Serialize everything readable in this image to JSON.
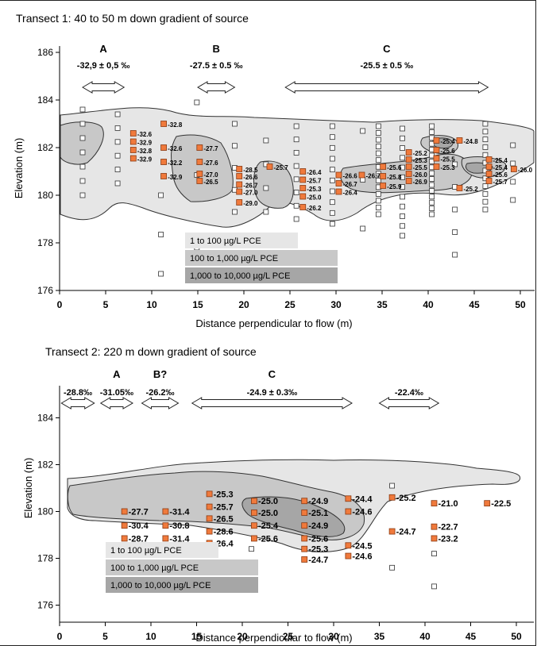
{
  "chart_data": [
    {
      "type": "scatter",
      "title": "Transect 1: 40 to 50 m down gradient of source",
      "xlabel": "Distance perpendicular to flow (m)",
      "ylabel": "Elevation (m)",
      "xlim": [
        0,
        52
      ],
      "ylim": [
        176,
        186.5
      ],
      "xticks": [
        0,
        5,
        10,
        15,
        20,
        25,
        30,
        35,
        40,
        45,
        50
      ],
      "yticks": [
        176,
        178,
        180,
        182,
        184,
        186
      ],
      "legend": [
        "1 to 100 µg/L PCE",
        "100 to 1,000 µg/L PCE",
        "1,000 to 10,000 µg/L PCE"
      ],
      "zone_colors": [
        "#e6e6e6",
        "#c8c8c8",
        "#a6a6a6"
      ],
      "zones": [
        {
          "label": "A",
          "text": "-32,9 ± 0,5 ‰",
          "from": 2.5,
          "to": 7.0
        },
        {
          "label": "B",
          "text": "-27.5 ± 0.5 ‰",
          "from": 15.0,
          "to": 19.0
        },
        {
          "label": "C",
          "text": "-25.5 ± 0.5 ‰",
          "from": 24.5,
          "to": 46.5
        }
      ],
      "samples": [
        {
          "x": 8.0,
          "y": 182.6,
          "label": "-32.6"
        },
        {
          "x": 8.0,
          "y": 182.25,
          "label": "-32.9"
        },
        {
          "x": 8.0,
          "y": 181.9,
          "label": "-32.8"
        },
        {
          "x": 8.0,
          "y": 181.55,
          "label": "-32.9"
        },
        {
          "x": 11.3,
          "y": 183.0,
          "label": "-32.8"
        },
        {
          "x": 11.3,
          "y": 182.0,
          "label": "-32.6"
        },
        {
          "x": 11.3,
          "y": 181.4,
          "label": "-32.2"
        },
        {
          "x": 11.3,
          "y": 180.8,
          "label": "-32.9"
        },
        {
          "x": 15.2,
          "y": 182.0,
          "label": "-27.7"
        },
        {
          "x": 15.2,
          "y": 181.4,
          "label": "-27.6"
        },
        {
          "x": 15.2,
          "y": 180.9,
          "label": "-27.0"
        },
        {
          "x": 15.2,
          "y": 180.6,
          "label": "-26.5"
        },
        {
          "x": 19.5,
          "y": 181.1,
          "label": "-28.5"
        },
        {
          "x": 19.5,
          "y": 180.8,
          "label": "-26.6"
        },
        {
          "x": 19.5,
          "y": 180.45,
          "label": "-26.7"
        },
        {
          "x": 19.5,
          "y": 180.15,
          "label": "-27.0"
        },
        {
          "x": 19.5,
          "y": 179.7,
          "label": "-29.0"
        },
        {
          "x": 22.8,
          "y": 181.2,
          "label": "-25.7"
        },
        {
          "x": 26.4,
          "y": 181.0,
          "label": "-26.4"
        },
        {
          "x": 26.4,
          "y": 180.65,
          "label": "-25.7"
        },
        {
          "x": 26.4,
          "y": 180.3,
          "label": "-25.3"
        },
        {
          "x": 26.4,
          "y": 179.95,
          "label": "-25.0"
        },
        {
          "x": 26.4,
          "y": 179.5,
          "label": "-26.2"
        },
        {
          "x": 30.3,
          "y": 180.85,
          "label": "-26.6"
        },
        {
          "x": 30.3,
          "y": 180.5,
          "label": "-26.7"
        },
        {
          "x": 30.3,
          "y": 180.15,
          "label": "-26.4"
        },
        {
          "x": 32.8,
          "y": 180.85,
          "label": "-26.7"
        },
        {
          "x": 35.1,
          "y": 181.2,
          "label": "-25.6"
        },
        {
          "x": 35.1,
          "y": 180.8,
          "label": "-25.8"
        },
        {
          "x": 35.1,
          "y": 180.4,
          "label": "-25.9"
        },
        {
          "x": 37.9,
          "y": 181.8,
          "label": "-25.2"
        },
        {
          "x": 37.9,
          "y": 181.5,
          "label": "-25.3"
        },
        {
          "x": 37.9,
          "y": 181.2,
          "label": "-25.5"
        },
        {
          "x": 37.9,
          "y": 180.9,
          "label": "-26.0"
        },
        {
          "x": 37.9,
          "y": 180.6,
          "label": "-26.9"
        },
        {
          "x": 40.9,
          "y": 182.3,
          "label": "-25.4"
        },
        {
          "x": 40.9,
          "y": 181.9,
          "label": "-25.6"
        },
        {
          "x": 40.9,
          "y": 181.55,
          "label": "-25.5"
        },
        {
          "x": 40.9,
          "y": 181.2,
          "label": "-25.3"
        },
        {
          "x": 43.4,
          "y": 182.3,
          "label": "-24.8"
        },
        {
          "x": 43.4,
          "y": 180.3,
          "label": "-25.2"
        },
        {
          "x": 46.6,
          "y": 181.5,
          "label": "-25.4"
        },
        {
          "x": 46.6,
          "y": 181.2,
          "label": "-25.4"
        },
        {
          "x": 46.6,
          "y": 180.9,
          "label": "-25.6"
        },
        {
          "x": 46.6,
          "y": 180.6,
          "label": "-25.7"
        },
        {
          "x": 49.3,
          "y": 181.1,
          "label": "-26.0"
        }
      ]
    },
    {
      "type": "scatter",
      "title": "Transect 2: 220 m down gradient of source",
      "xlabel": "Distance perpendicular to flow (m)",
      "ylabel": "Elevation (m)",
      "xlim": [
        0,
        53
      ],
      "ylim": [
        175,
        184.3
      ],
      "xticks": [
        0,
        5,
        10,
        15,
        20,
        25,
        30,
        35,
        40,
        45,
        50
      ],
      "yticks": [
        176,
        178,
        180,
        182,
        184
      ],
      "legend": [
        "1 to 100 µg/L PCE",
        "100 to 1,000 µg/L PCE",
        "1,000 to 10,000 µg/L PCE"
      ],
      "zone_colors": [
        "#e6e6e6",
        "#c8c8c8",
        "#a6a6a6"
      ],
      "zones": [
        {
          "label": "",
          "text": "-28.8‰",
          "from": 0.2,
          "to": 3.8
        },
        {
          "label": "A",
          "text": "-31.05‰",
          "from": 4.5,
          "to": 8.0
        },
        {
          "label": "B?",
          "text": "-26.2‰",
          "from": 9.0,
          "to": 13.0
        },
        {
          "label": "C",
          "text": "-24.9 ± 0.3‰",
          "from": 14.5,
          "to": 32.0
        },
        {
          "label": "",
          "text": "-22.4‰",
          "from": 35.0,
          "to": 41.5
        }
      ],
      "samples": [
        {
          "x": 7.1,
          "y": 180.0,
          "label": "-27.7"
        },
        {
          "x": 7.1,
          "y": 179.4,
          "label": "-30.4"
        },
        {
          "x": 7.1,
          "y": 178.85,
          "label": "-28.7"
        },
        {
          "x": 11.6,
          "y": 180.0,
          "label": "-31.4"
        },
        {
          "x": 11.6,
          "y": 179.4,
          "label": "-30.8"
        },
        {
          "x": 11.6,
          "y": 178.85,
          "label": "-31.4"
        },
        {
          "x": 16.4,
          "y": 180.75,
          "label": "-25.3"
        },
        {
          "x": 16.4,
          "y": 180.2,
          "label": "-25.7"
        },
        {
          "x": 16.4,
          "y": 179.7,
          "label": "-26.5"
        },
        {
          "x": 16.4,
          "y": 179.15,
          "label": "-28.6"
        },
        {
          "x": 16.4,
          "y": 178.65,
          "label": "-26.4"
        },
        {
          "x": 21.3,
          "y": 180.45,
          "label": "-25.0"
        },
        {
          "x": 21.3,
          "y": 179.95,
          "label": "-25.0"
        },
        {
          "x": 21.3,
          "y": 179.4,
          "label": "-25.4"
        },
        {
          "x": 21.3,
          "y": 178.85,
          "label": "-25.6"
        },
        {
          "x": 26.8,
          "y": 180.45,
          "label": "-24.9"
        },
        {
          "x": 26.8,
          "y": 179.95,
          "label": "-25.1"
        },
        {
          "x": 26.8,
          "y": 179.4,
          "label": "-24.9"
        },
        {
          "x": 26.8,
          "y": 178.85,
          "label": "-25.6"
        },
        {
          "x": 26.8,
          "y": 178.4,
          "label": "-25.3"
        },
        {
          "x": 26.8,
          "y": 177.95,
          "label": "-24.7"
        },
        {
          "x": 31.6,
          "y": 180.55,
          "label": "-24.4"
        },
        {
          "x": 31.6,
          "y": 180.0,
          "label": "-24.6"
        },
        {
          "x": 31.6,
          "y": 178.55,
          "label": "-24.5"
        },
        {
          "x": 31.6,
          "y": 178.1,
          "label": "-24.6"
        },
        {
          "x": 36.4,
          "y": 180.6,
          "label": "-25.2"
        },
        {
          "x": 36.4,
          "y": 179.15,
          "label": "-24.7"
        },
        {
          "x": 41.0,
          "y": 180.35,
          "label": "-21.0"
        },
        {
          "x": 41.0,
          "y": 179.35,
          "label": "-22.7"
        },
        {
          "x": 41.0,
          "y": 178.85,
          "label": "-23.2"
        },
        {
          "x": 46.8,
          "y": 180.35,
          "label": "-22.5"
        }
      ]
    }
  ]
}
